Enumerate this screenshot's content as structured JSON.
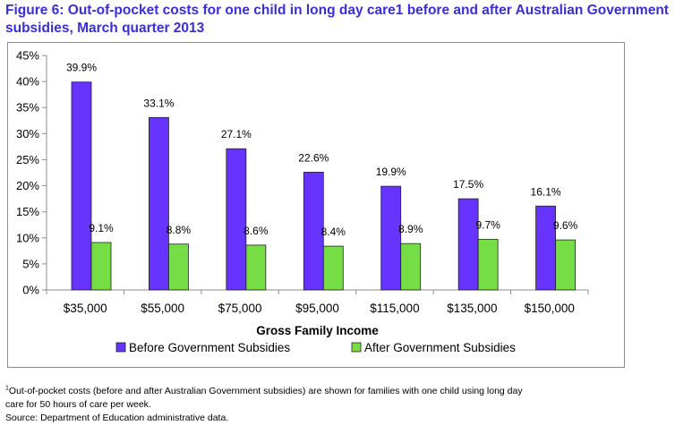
{
  "title": "Figure 6: Out-of-pocket costs for one child in long day care1 before and after Australian Government subsidies, March quarter 2013",
  "chart_data": {
    "type": "bar",
    "categories": [
      "$35,000",
      "$55,000",
      "$75,000",
      "$95,000",
      "$115,000",
      "$135,000",
      "$150,000"
    ],
    "series": [
      {
        "name": "Before Government Subsidies",
        "color": "#6633ff",
        "values": [
          39.9,
          33.1,
          27.1,
          22.6,
          19.9,
          17.5,
          16.1
        ],
        "labels": [
          "39.9%",
          "33.1%",
          "27.1%",
          "22.6%",
          "19.9%",
          "17.5%",
          "16.1%"
        ]
      },
      {
        "name": "After Government Subsidies",
        "color": "#77dd44",
        "values": [
          9.1,
          8.8,
          8.6,
          8.4,
          8.9,
          9.7,
          9.6
        ],
        "labels": [
          "9.1%",
          "8.8%",
          "8.6%",
          "8.4%",
          "8.9%",
          "9.7%",
          "9.6%"
        ]
      }
    ],
    "xlabel": "Gross Family Income",
    "ylabel": "",
    "ylim": [
      0,
      45
    ],
    "yticks": [
      0,
      5,
      10,
      15,
      20,
      25,
      30,
      35,
      40,
      45
    ],
    "ytick_labels": [
      "0%",
      "5%",
      "10%",
      "15%",
      "20%",
      "25%",
      "30%",
      "35%",
      "40%",
      "45%"
    ],
    "grid": false,
    "legend": "bottom"
  },
  "footnote": {
    "marker": "1",
    "line1": "Out-of-pocket costs (before and after Australian Government subsidies) are shown for families with one child using long day",
    "line2": "care for 50 hours of care per week.",
    "source": "Source:  Department of Education administrative data."
  }
}
